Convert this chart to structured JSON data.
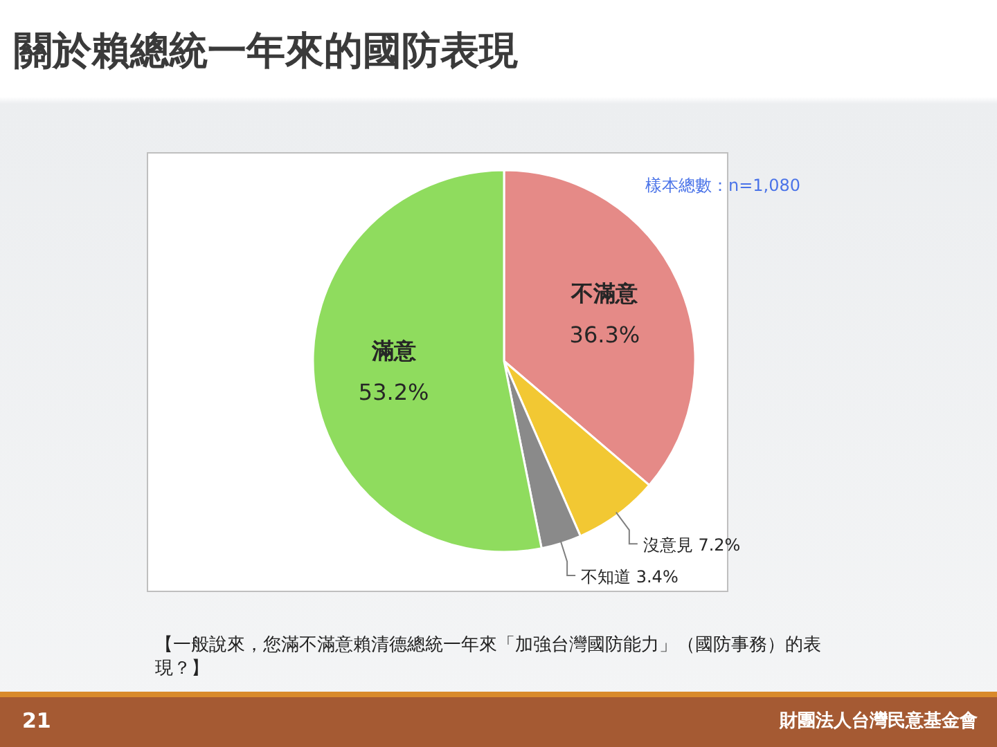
{
  "chart_data": {
    "type": "pie",
    "title": "關於賴總統一年來的國防表現",
    "categories": [
      "不滿意",
      "沒意見",
      "不知道",
      "滿意"
    ],
    "values": [
      36.3,
      7.2,
      3.4,
      53.2
    ],
    "colors": [
      "#e58a87",
      "#f2c833",
      "#8a8a8a",
      "#8fdc5e"
    ],
    "value_labels": [
      "36.3%",
      "7.2%",
      "3.4%",
      "53.2%"
    ],
    "annotations": [
      "樣本總數：n=1,080",
      "【一般說來，您滿不滿意賴清德總統一年來「加強台灣國防能力」（國防事務）的表現？】",
      "21",
      "財團法人台灣民意基金會"
    ]
  }
}
